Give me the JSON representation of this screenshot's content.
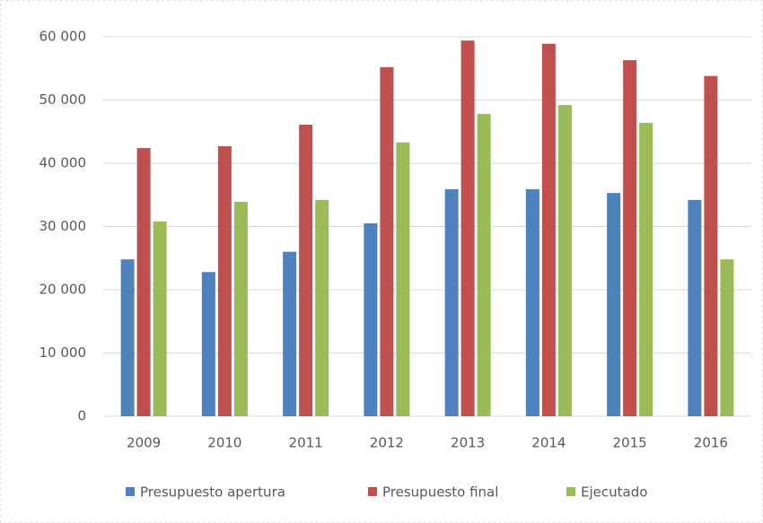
{
  "chart_data": {
    "type": "bar",
    "categories": [
      "2009",
      "2010",
      "2011",
      "2012",
      "2013",
      "2014",
      "2015",
      "2016"
    ],
    "series": [
      {
        "name": "Presupuesto apertura",
        "color": "#4f81bd",
        "values": [
          24800,
          22800,
          26000,
          30500,
          35900,
          35900,
          35300,
          34200
        ]
      },
      {
        "name": "Presupuesto final",
        "color": "#c0504d",
        "values": [
          42400,
          42700,
          46100,
          55200,
          59400,
          58900,
          56300,
          53800
        ]
      },
      {
        "name": "Ejecutado",
        "color": "#9bbb59",
        "values": [
          30800,
          33900,
          34200,
          43300,
          47800,
          49200,
          46400,
          24800
        ]
      }
    ],
    "ylim": [
      0,
      60000
    ],
    "yticks": [
      0,
      {
        "value": 10000,
        "label": "10 000"
      },
      {
        "value": 20000,
        "label": "20 000"
      },
      {
        "value": 30000,
        "label": "30 000"
      },
      {
        "value": 40000,
        "label": "40 000"
      },
      {
        "value": 50000,
        "label": "50 000"
      },
      {
        "value": 60000,
        "label": "60 000"
      }
    ],
    "grid": true,
    "legend": "bottom"
  }
}
